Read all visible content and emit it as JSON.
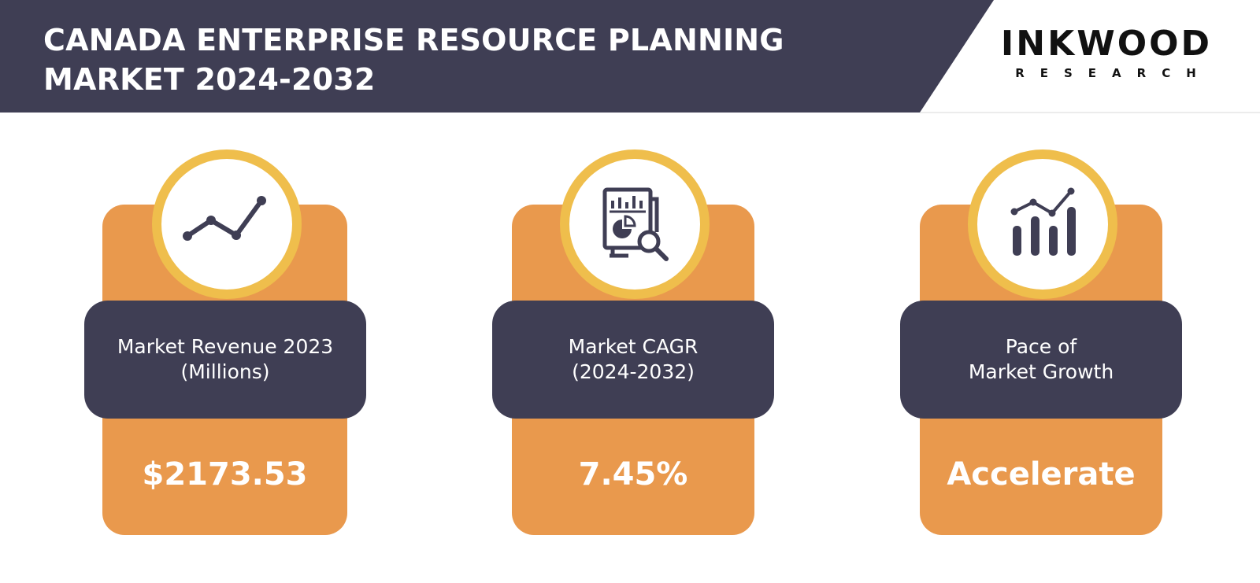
{
  "header": {
    "title_line1": "CANADA ENTERPRISE RESOURCE PLANNING",
    "title_line2": "MARKET 2024-2032",
    "logo_main": "INKWOOD",
    "logo_sub": "RESEARCH"
  },
  "colors": {
    "header_band": "#3F3E54",
    "card_orange": "#E9994D",
    "ring_yellow": "#EFBE4C",
    "label_box": "#3F3E54",
    "text_light": "#FFFFFF"
  },
  "cards": [
    {
      "icon": "line-chart-icon",
      "label_line1": "Market Revenue 2023",
      "label_line2": "(Millions)",
      "value": "$2173.53"
    },
    {
      "icon": "report-analysis-icon",
      "label_line1": "Market CAGR",
      "label_line2": "(2024-2032)",
      "value": "7.45%"
    },
    {
      "icon": "bar-growth-icon",
      "label_line1": "Pace of",
      "label_line2": "Market Growth",
      "value": "Accelerate"
    }
  ]
}
